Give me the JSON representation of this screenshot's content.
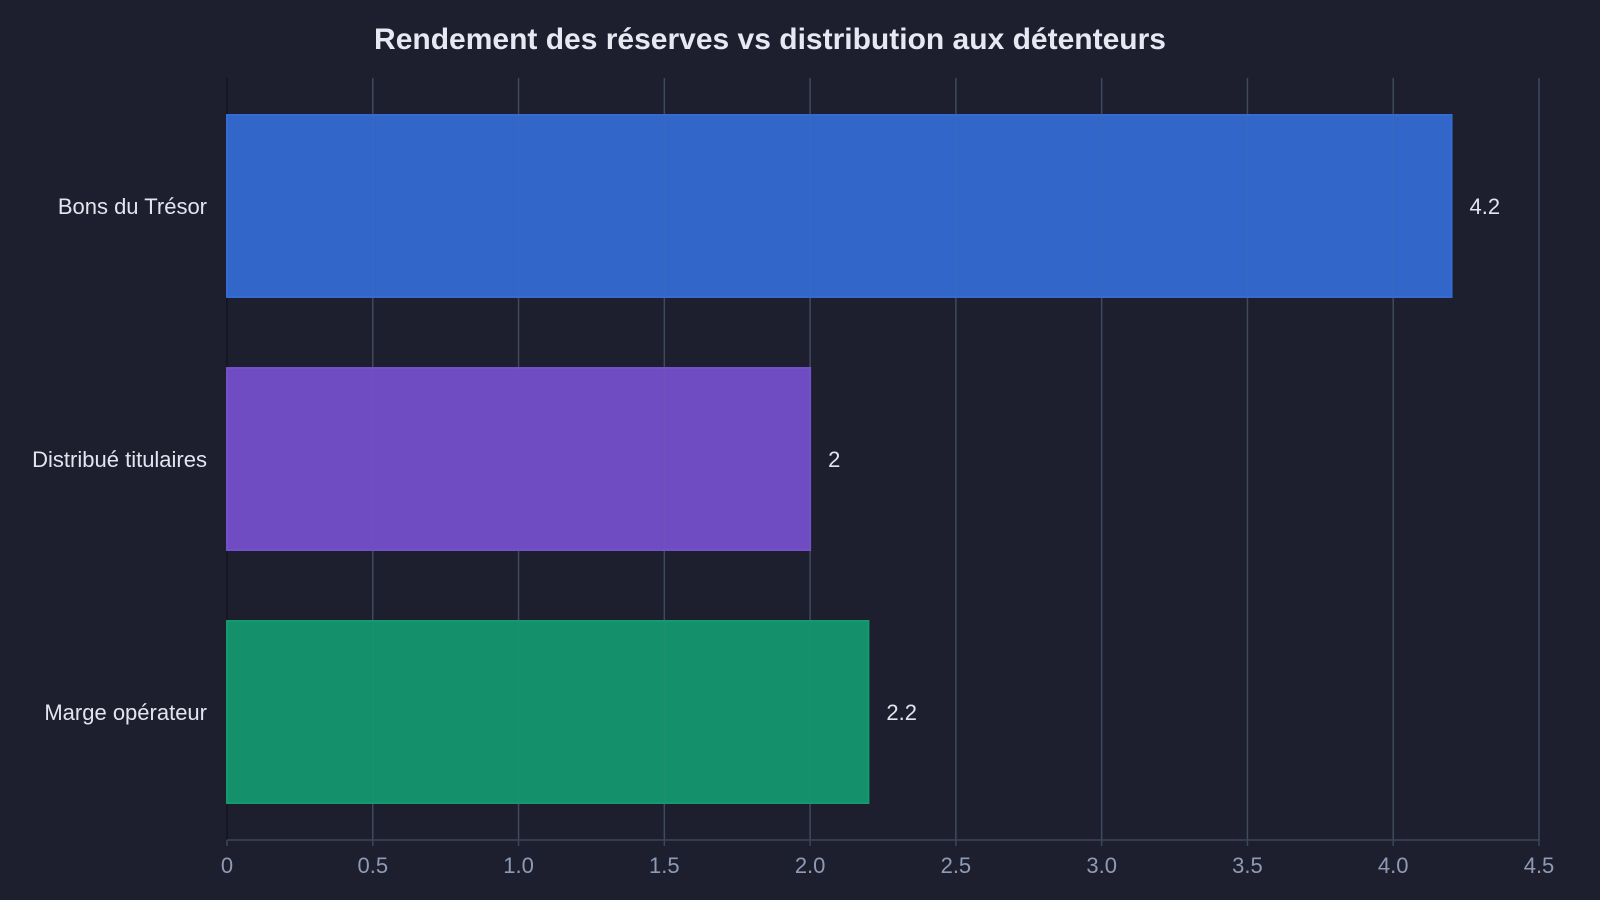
{
  "chart_data": {
    "type": "bar",
    "orientation": "horizontal",
    "title": "Rendement des réserves vs distribution aux détenteurs",
    "xlabel": "",
    "ylabel": "",
    "categories": [
      "Bons du Trésor",
      "Distribué titulaires",
      "Marge opérateur"
    ],
    "values": [
      4.2,
      2,
      2.2
    ],
    "value_labels": [
      "4.2",
      "2",
      "2.2"
    ],
    "colors": [
      "#346cd4",
      "#7550cc",
      "#139a6f"
    ],
    "xlim": [
      0,
      4.5
    ],
    "x_ticks": [
      0,
      0.5,
      1.0,
      1.5,
      2.0,
      2.5,
      3.0,
      3.5,
      4.0,
      4.5
    ],
    "x_tick_labels": [
      "0",
      "0.5",
      "1.0",
      "1.5",
      "2.0",
      "2.5",
      "3.0",
      "3.5",
      "4.0",
      "4.5"
    ],
    "grid": true,
    "legend": "none"
  },
  "colors": {
    "background": "#1e1f2e",
    "grid": "#3b4658",
    "text": "#e2e5ef",
    "tick_text": "#8f9bb5"
  }
}
